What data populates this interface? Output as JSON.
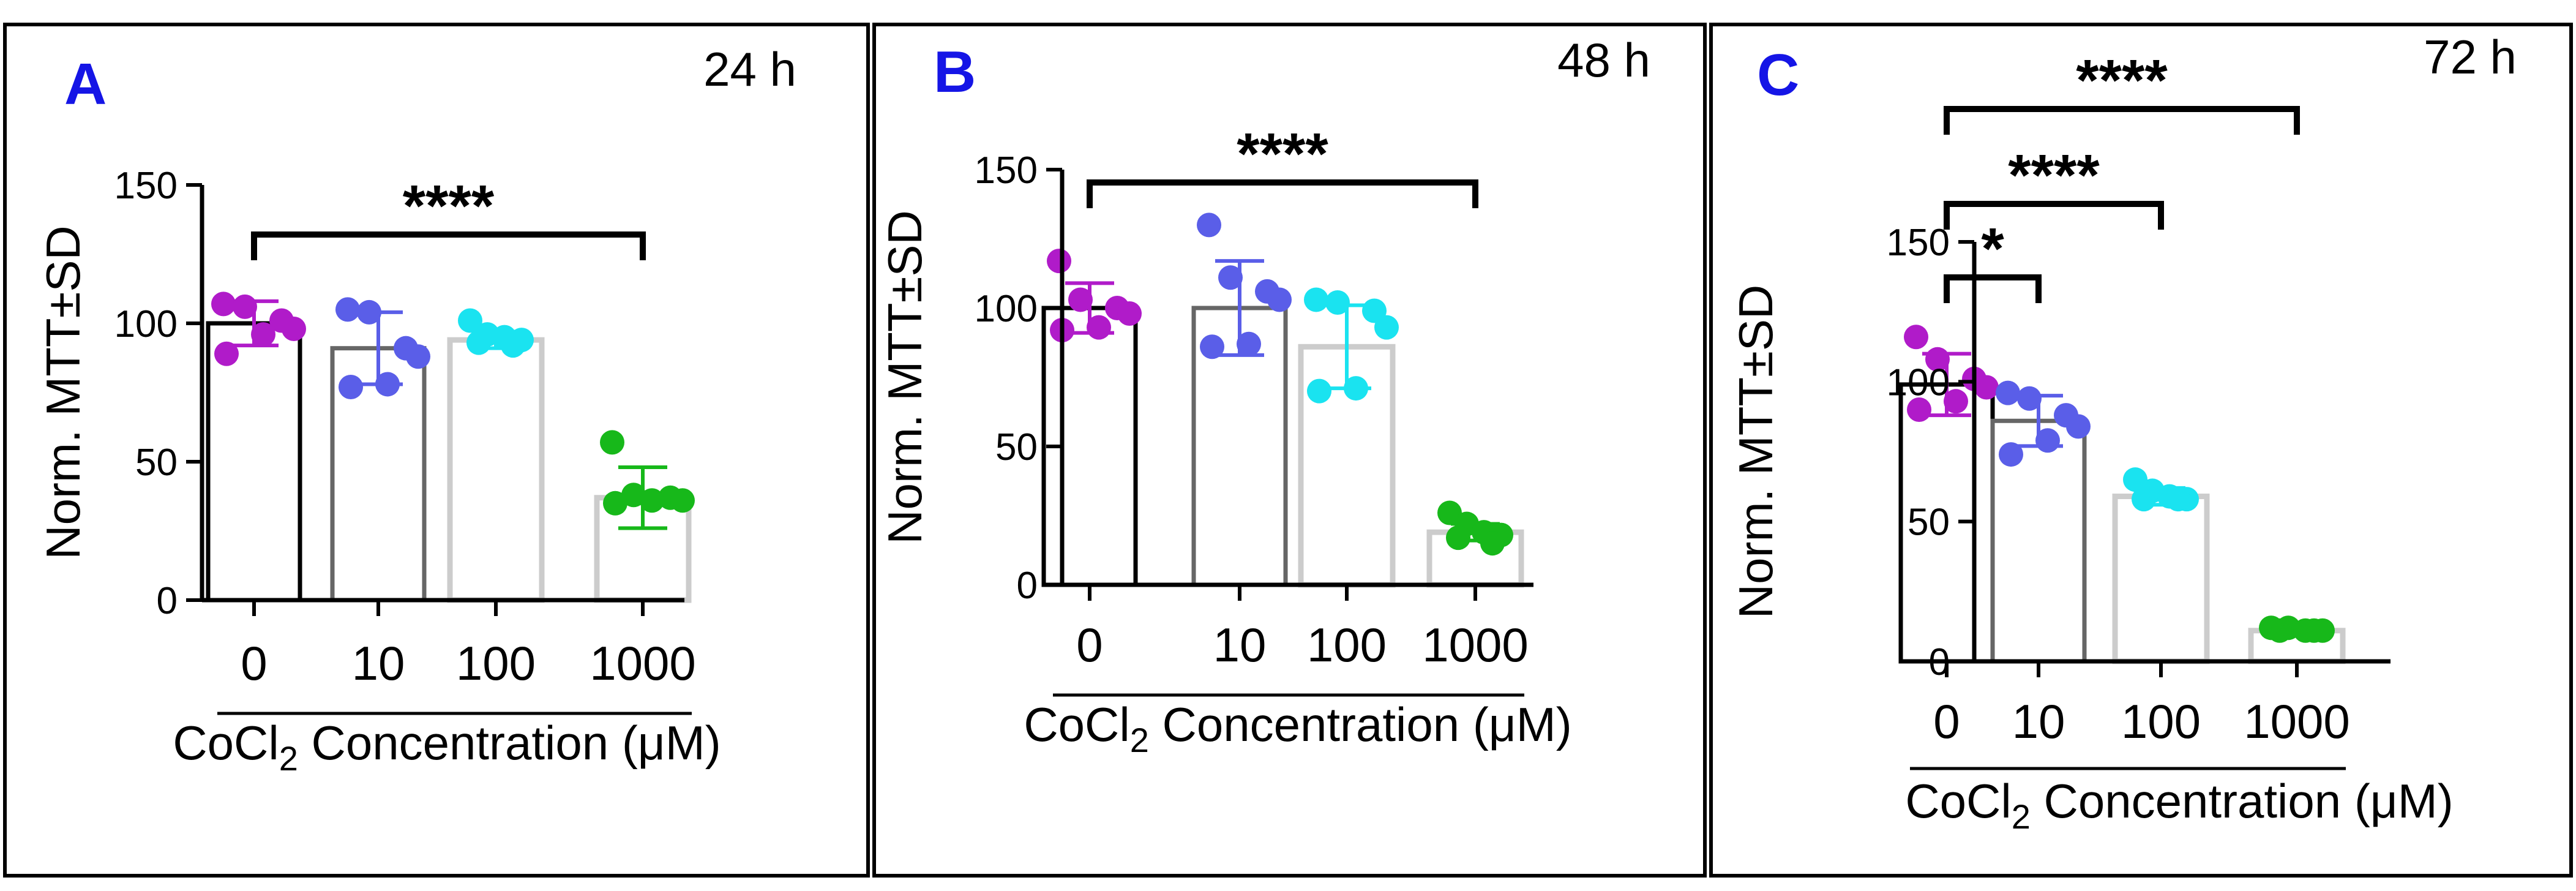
{
  "figure": {
    "x_axis_title_prefix": "CoCl",
    "x_axis_title_subscript": "2",
    "x_axis_title_suffix": " Concentration (μM)"
  },
  "colors": {
    "group_0": "#B01BC9",
    "group_10": "#5A5EE8",
    "group_100": "#1AE3F0",
    "group_1000": "#17B81A",
    "bar_0": "#000000",
    "bar_10": "#666666",
    "bar_100": "#cccccc",
    "bar_1000": "#cccccc",
    "panel_letter": "#1515E6",
    "axis": "#000000"
  },
  "chart_data": [
    {
      "type": "bar",
      "panel": "A",
      "timepoint": "24 h",
      "ylabel": "Norm. MTT±SD",
      "xlabel": "CoCl2 Concentration (μM)",
      "categories": [
        "0",
        "10",
        "100",
        "1000"
      ],
      "ylim": [
        0,
        150
      ],
      "yticks": [
        "0",
        "50",
        "100",
        "150"
      ],
      "means": [
        100,
        91,
        94,
        37
      ],
      "sd": [
        8,
        13,
        3,
        11
      ],
      "points": [
        [
          107,
          106,
          101,
          98,
          96,
          89
        ],
        [
          105,
          104,
          91,
          88,
          78,
          77
        ],
        [
          101,
          96,
          95,
          94,
          93,
          92
        ],
        [
          57,
          38,
          37,
          36,
          36,
          35
        ]
      ],
      "significance": [
        {
          "from": "0",
          "to": "1000",
          "label": "****"
        }
      ]
    },
    {
      "type": "bar",
      "panel": "B",
      "timepoint": "48 h",
      "ylabel": "Norm. MTT±SD",
      "xlabel": "CoCl2 Concentration (μM)",
      "categories": [
        "0",
        "10",
        "100",
        "1000"
      ],
      "ylim": [
        0,
        150
      ],
      "yticks": [
        "0",
        "50",
        "100",
        "150"
      ],
      "means": [
        100,
        100,
        86,
        19
      ],
      "sd": [
        9,
        17,
        15,
        3
      ],
      "points": [
        [
          117,
          103,
          100,
          98,
          93,
          92
        ],
        [
          130,
          111,
          106,
          103,
          87,
          86
        ],
        [
          103,
          102,
          99,
          93,
          71,
          70
        ],
        [
          26,
          22,
          19,
          18,
          17,
          15
        ]
      ],
      "significance": [
        {
          "from": "0",
          "to": "1000",
          "label": "****"
        }
      ]
    },
    {
      "type": "bar",
      "panel": "C",
      "timepoint": "72 h",
      "ylabel": "Norm. MTT±SD",
      "xlabel": "CoCl2 Concentration (μM)",
      "categories": [
        "0",
        "10",
        "100",
        "1000"
      ],
      "ylim": [
        0,
        150
      ],
      "yticks": [
        "0",
        "50",
        "100",
        "150"
      ],
      "means": [
        99,
        86,
        59,
        11
      ],
      "sd": [
        11,
        9,
        3,
        1
      ],
      "points": [
        [
          116,
          108,
          101,
          98,
          93,
          90
        ],
        [
          96,
          94,
          88,
          84,
          79,
          74
        ],
        [
          65,
          61,
          59,
          58,
          58,
          58
        ],
        [
          12,
          12,
          11,
          11,
          11,
          11
        ]
      ],
      "significance": [
        {
          "from": "0",
          "to": "10",
          "label": "*"
        },
        {
          "from": "0",
          "to": "100",
          "label": "****"
        },
        {
          "from": "0",
          "to": "1000",
          "label": "****"
        }
      ]
    }
  ]
}
